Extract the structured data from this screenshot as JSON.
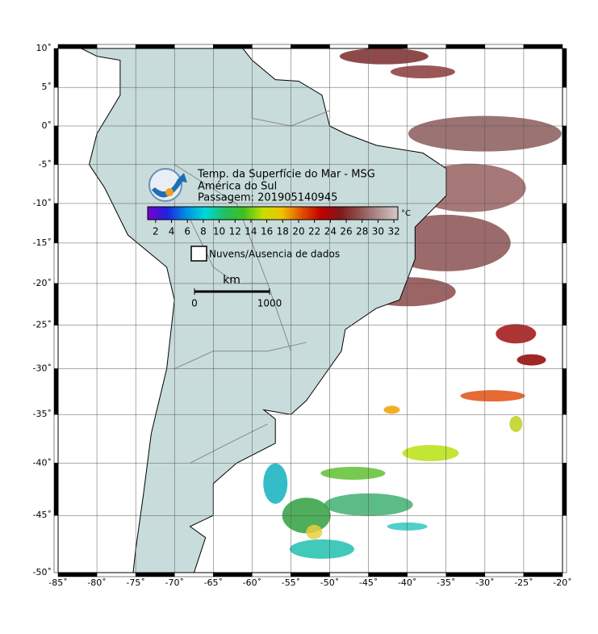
{
  "header": {
    "title_lines": [
      "Temp. da Superfície do Mar - MSG",
      "América do Sul",
      "Passagem: 201905140945"
    ]
  },
  "map": {
    "lon_range": [
      -85,
      -20
    ],
    "lat_range": [
      10,
      -50
    ],
    "lon_ticks": [
      {
        "value": -85,
        "label": "-85˚"
      },
      {
        "value": -80,
        "label": "-80˚"
      },
      {
        "value": -75,
        "label": "-75˚"
      },
      {
        "value": -70,
        "label": "-70˚"
      },
      {
        "value": -65,
        "label": "-65˚"
      },
      {
        "value": -60,
        "label": "-60˚"
      },
      {
        "value": -55,
        "label": "-55˚"
      },
      {
        "value": -50,
        "label": "-50˚"
      },
      {
        "value": -45,
        "label": "-45˚"
      },
      {
        "value": -40,
        "label": "-40˚"
      },
      {
        "value": -35,
        "label": "-35˚"
      },
      {
        "value": -30,
        "label": "-30˚"
      },
      {
        "value": -25,
        "label": "-25˚"
      },
      {
        "value": -20,
        "label": "-20˚"
      }
    ],
    "lat_ticks": [
      {
        "value": 10,
        "label": "10˚"
      },
      {
        "value": 5,
        "label": "5˚"
      },
      {
        "value": 0,
        "label": "0˚"
      },
      {
        "value": -5,
        "label": "-5˚"
      },
      {
        "value": -10,
        "label": "-10˚"
      },
      {
        "value": -15,
        "label": "-15˚"
      },
      {
        "value": -20,
        "label": "-20˚"
      },
      {
        "value": -25,
        "label": "-25˚"
      },
      {
        "value": -30,
        "label": "-30˚"
      },
      {
        "value": -35,
        "label": "-35˚"
      },
      {
        "value": -40,
        "label": "-40˚"
      },
      {
        "value": -45,
        "label": "-45˚"
      },
      {
        "value": -50,
        "label": "-50˚"
      }
    ]
  },
  "colorbar": {
    "unit": "°C",
    "range": [
      1,
      32.5
    ],
    "ticks": [
      2,
      4,
      6,
      8,
      10,
      12,
      14,
      16,
      18,
      20,
      22,
      24,
      26,
      28,
      30,
      32
    ],
    "colors": [
      "#7a00c8",
      "#2020e0",
      "#0090e0",
      "#00d8d8",
      "#20c060",
      "#40c020",
      "#c8e000",
      "#f0c000",
      "#e05000",
      "#c00000",
      "#801818",
      "#905050",
      "#b09090",
      "#d8c8c8"
    ]
  },
  "legend": {
    "clouds": "Nuvens/Ausencia de dados"
  },
  "scale": {
    "unit": "km",
    "ticks": [
      0,
      1000
    ]
  }
}
